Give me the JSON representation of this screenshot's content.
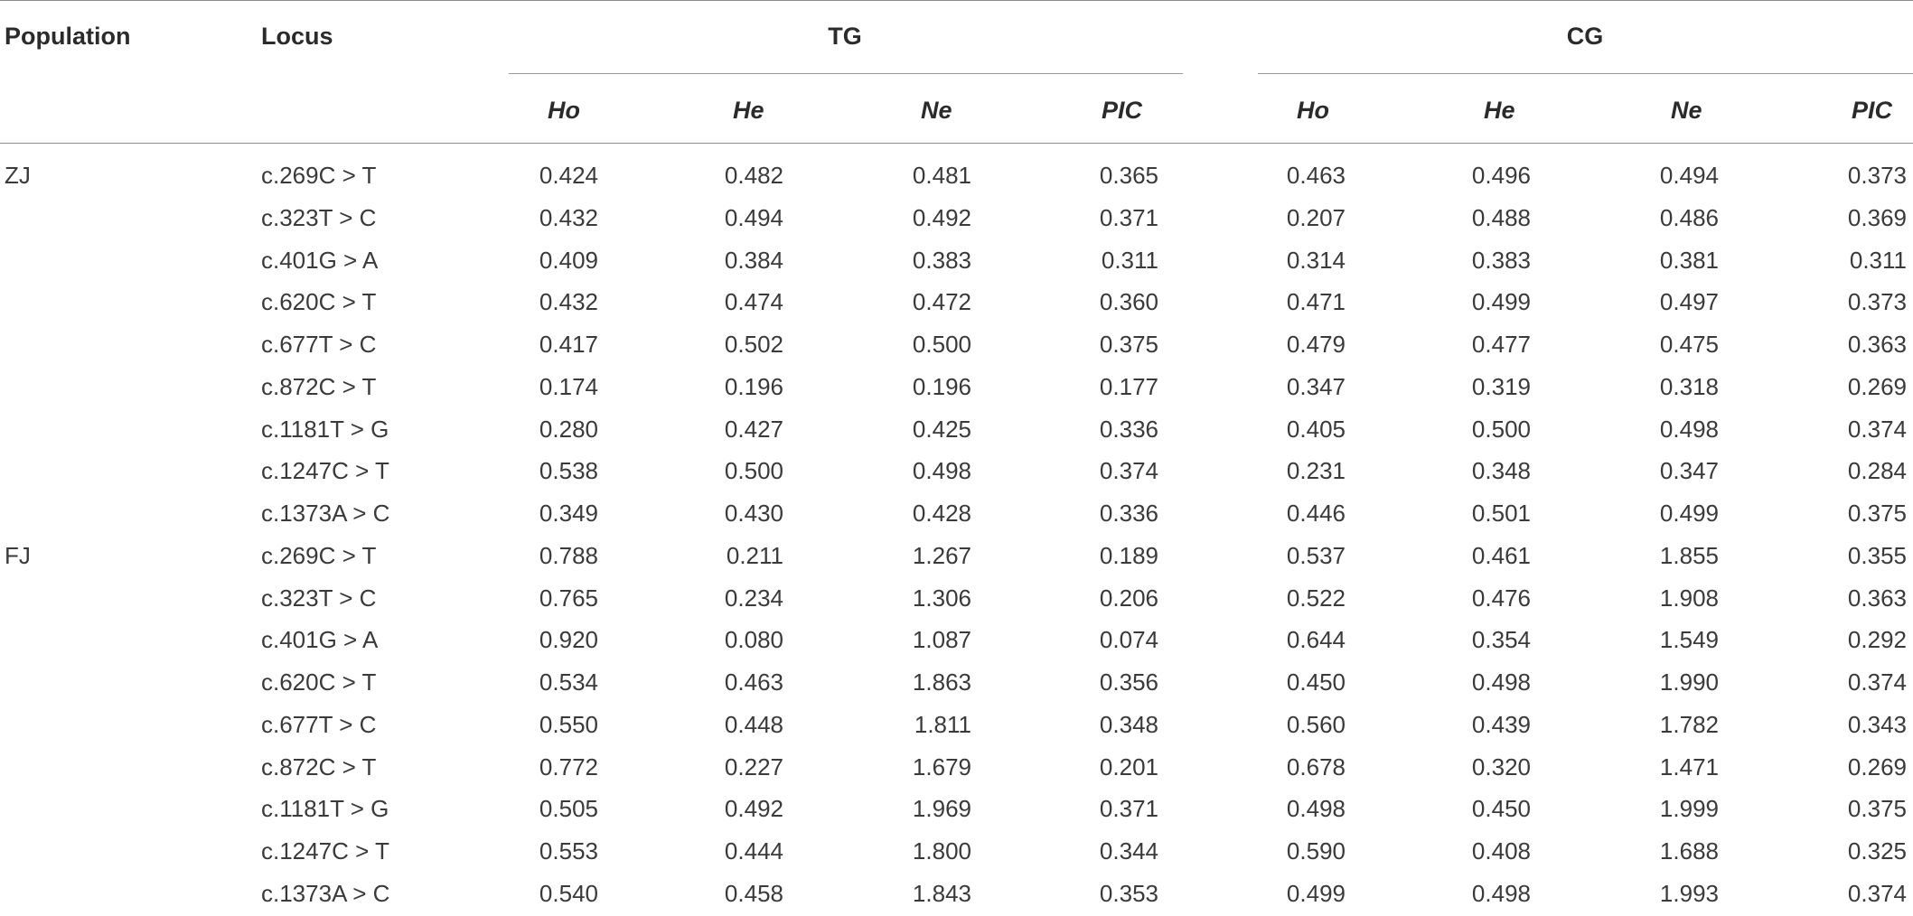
{
  "table": {
    "headers": {
      "population": "Population",
      "locus": "Locus",
      "groups": [
        "TG",
        "CG"
      ],
      "metrics": [
        "Ho",
        "He",
        "Ne",
        "PIC"
      ]
    },
    "rows": [
      {
        "population": "ZJ",
        "locus": "c.269C > T",
        "tg": [
          "0.424",
          "0.482",
          "0.481",
          "0.365"
        ],
        "cg": [
          "0.463",
          "0.496",
          "0.494",
          "0.373"
        ]
      },
      {
        "population": "",
        "locus": "c.323T > C",
        "tg": [
          "0.432",
          "0.494",
          "0.492",
          "0.371"
        ],
        "cg": [
          "0.207",
          "0.488",
          "0.486",
          "0.369"
        ]
      },
      {
        "population": "",
        "locus": "c.401G > A",
        "tg": [
          "0.409",
          "0.384",
          "0.383",
          "0.311"
        ],
        "cg": [
          "0.314",
          "0.383",
          "0.381",
          "0.311"
        ]
      },
      {
        "population": "",
        "locus": "c.620C > T",
        "tg": [
          "0.432",
          "0.474",
          "0.472",
          "0.360"
        ],
        "cg": [
          "0.471",
          "0.499",
          "0.497",
          "0.373"
        ]
      },
      {
        "population": "",
        "locus": "c.677T > C",
        "tg": [
          "0.417",
          "0.502",
          "0.500",
          "0.375"
        ],
        "cg": [
          "0.479",
          "0.477",
          "0.475",
          "0.363"
        ]
      },
      {
        "population": "",
        "locus": "c.872C > T",
        "tg": [
          "0.174",
          "0.196",
          "0.196",
          "0.177"
        ],
        "cg": [
          "0.347",
          "0.319",
          "0.318",
          "0.269"
        ]
      },
      {
        "population": "",
        "locus": "c.1181T > G",
        "tg": [
          "0.280",
          "0.427",
          "0.425",
          "0.336"
        ],
        "cg": [
          "0.405",
          "0.500",
          "0.498",
          "0.374"
        ]
      },
      {
        "population": "",
        "locus": "c.1247C > T",
        "tg": [
          "0.538",
          "0.500",
          "0.498",
          "0.374"
        ],
        "cg": [
          "0.231",
          "0.348",
          "0.347",
          "0.284"
        ]
      },
      {
        "population": "",
        "locus": "c.1373A > C",
        "tg": [
          "0.349",
          "0.430",
          "0.428",
          "0.336"
        ],
        "cg": [
          "0.446",
          "0.501",
          "0.499",
          "0.375"
        ]
      },
      {
        "population": "FJ",
        "locus": "c.269C > T",
        "tg": [
          "0.788",
          "0.211",
          "1.267",
          "0.189"
        ],
        "cg": [
          "0.537",
          "0.461",
          "1.855",
          "0.355"
        ]
      },
      {
        "population": "",
        "locus": "c.323T > C",
        "tg": [
          "0.765",
          "0.234",
          "1.306",
          "0.206"
        ],
        "cg": [
          "0.522",
          "0.476",
          "1.908",
          "0.363"
        ]
      },
      {
        "population": "",
        "locus": "c.401G > A",
        "tg": [
          "0.920",
          "0.080",
          "1.087",
          "0.074"
        ],
        "cg": [
          "0.644",
          "0.354",
          "1.549",
          "0.292"
        ]
      },
      {
        "population": "",
        "locus": "c.620C > T",
        "tg": [
          "0.534",
          "0.463",
          "1.863",
          "0.356"
        ],
        "cg": [
          "0.450",
          "0.498",
          "1.990",
          "0.374"
        ]
      },
      {
        "population": "",
        "locus": "c.677T > C",
        "tg": [
          "0.550",
          "0.448",
          "1.811",
          "0.348"
        ],
        "cg": [
          "0.560",
          "0.439",
          "1.782",
          "0.343"
        ]
      },
      {
        "population": "",
        "locus": "c.872C > T",
        "tg": [
          "0.772",
          "0.227",
          "1.679",
          "0.201"
        ],
        "cg": [
          "0.678",
          "0.320",
          "1.471",
          "0.269"
        ]
      },
      {
        "population": "",
        "locus": "c.1181T > G",
        "tg": [
          "0.505",
          "0.492",
          "1.969",
          "0.371"
        ],
        "cg": [
          "0.498",
          "0.450",
          "1.999",
          "0.375"
        ]
      },
      {
        "population": "",
        "locus": "c.1247C > T",
        "tg": [
          "0.553",
          "0.444",
          "1.800",
          "0.344"
        ],
        "cg": [
          "0.590",
          "0.408",
          "1.688",
          "0.325"
        ]
      },
      {
        "population": "",
        "locus": "c.1373A > C",
        "tg": [
          "0.540",
          "0.458",
          "1.843",
          "0.353"
        ],
        "cg": [
          "0.499",
          "0.498",
          "1.993",
          "0.374"
        ]
      }
    ]
  }
}
